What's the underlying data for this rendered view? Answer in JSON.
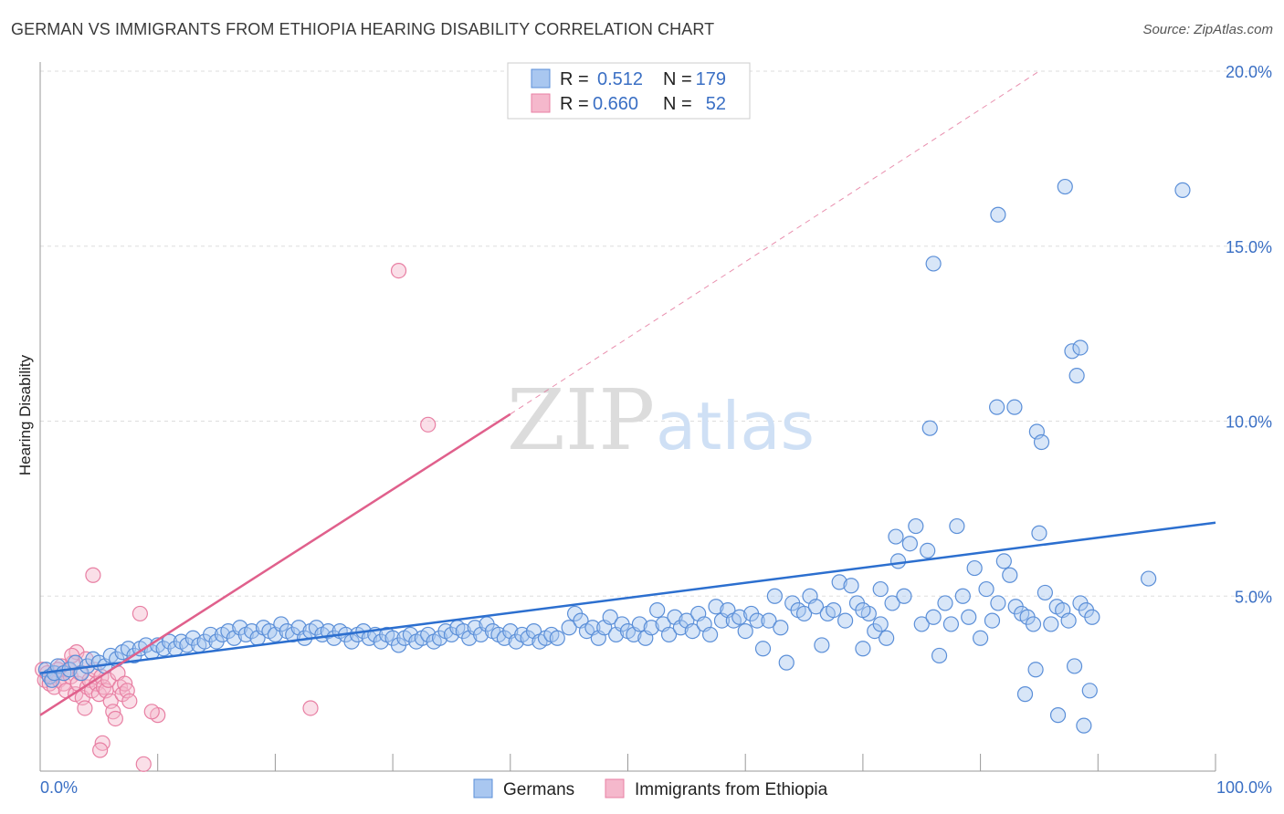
{
  "header": {
    "title": "GERMAN VS IMMIGRANTS FROM ETHIOPIA HEARING DISABILITY CORRELATION CHART",
    "source": "Source: ZipAtlas.com"
  },
  "colors": {
    "blue": "#5b8fd8",
    "blue_fill": "#a9c7f0",
    "blue_line": "#2c6fcf",
    "pink": "#e87fa3",
    "pink_fill": "#f5b8cc",
    "pink_line": "#e0608c",
    "axis_text": "#3a6fc4",
    "grid": "#dddddd"
  },
  "watermark": {
    "zip": "ZIP",
    "atlas": "atlas"
  },
  "legend": {
    "items": [
      {
        "r_label": "R =",
        "r_value": "0.512",
        "n_label": "N =",
        "n_value": "179"
      },
      {
        "r_label": "R =",
        "r_value": "0.660",
        "n_label": "N =",
        "n_value": "52"
      }
    ]
  },
  "bottom_legend": [
    "Germans",
    "Immigrants from Ethiopia"
  ],
  "chart_data": {
    "type": "scatter",
    "ylabel": "Hearing Disability",
    "xlim": [
      0,
      100
    ],
    "ylim": [
      0,
      20
    ],
    "x_tick_labels": [
      "0.0%",
      "100.0%"
    ],
    "y_ticks": [
      5,
      10,
      15,
      20
    ],
    "y_tick_labels": [
      "5.0%",
      "10.0%",
      "15.0%",
      "20.0%"
    ],
    "grid": true,
    "legend_position": "top-center",
    "series": [
      {
        "name": "Germans",
        "r": 0.512,
        "n": 179,
        "trend": {
          "x": [
            0,
            100
          ],
          "y": [
            2.8,
            7.1
          ]
        },
        "points": [
          [
            0.5,
            2.9
          ],
          [
            0.8,
            2.7
          ],
          [
            1,
            2.6
          ],
          [
            1.2,
            2.8
          ],
          [
            1.5,
            3.0
          ],
          [
            2,
            2.8
          ],
          [
            2.5,
            2.9
          ],
          [
            3,
            3.1
          ],
          [
            3.5,
            2.8
          ],
          [
            4,
            3.0
          ],
          [
            4.5,
            3.2
          ],
          [
            5,
            3.1
          ],
          [
            5.5,
            3.0
          ],
          [
            6,
            3.3
          ],
          [
            6.5,
            3.2
          ],
          [
            7,
            3.4
          ],
          [
            7.5,
            3.5
          ],
          [
            8,
            3.3
          ],
          [
            8.5,
            3.5
          ],
          [
            9,
            3.6
          ],
          [
            9.5,
            3.4
          ],
          [
            10,
            3.6
          ],
          [
            10.5,
            3.5
          ],
          [
            11,
            3.7
          ],
          [
            11.5,
            3.5
          ],
          [
            12,
            3.7
          ],
          [
            12.5,
            3.6
          ],
          [
            13,
            3.8
          ],
          [
            13.5,
            3.6
          ],
          [
            14,
            3.7
          ],
          [
            14.5,
            3.9
          ],
          [
            15,
            3.7
          ],
          [
            15.5,
            3.9
          ],
          [
            16,
            4.0
          ],
          [
            16.5,
            3.8
          ],
          [
            17,
            4.1
          ],
          [
            17.5,
            3.9
          ],
          [
            18,
            4.0
          ],
          [
            18.5,
            3.8
          ],
          [
            19,
            4.1
          ],
          [
            19.5,
            4.0
          ],
          [
            20,
            3.9
          ],
          [
            20.5,
            4.2
          ],
          [
            21,
            4.0
          ],
          [
            21.5,
            3.9
          ],
          [
            22,
            4.1
          ],
          [
            22.5,
            3.8
          ],
          [
            23,
            4.0
          ],
          [
            23.5,
            4.1
          ],
          [
            24,
            3.9
          ],
          [
            24.5,
            4.0
          ],
          [
            25,
            3.8
          ],
          [
            25.5,
            4.0
          ],
          [
            26,
            3.9
          ],
          [
            26.5,
            3.7
          ],
          [
            27,
            3.9
          ],
          [
            27.5,
            4.0
          ],
          [
            28,
            3.8
          ],
          [
            28.5,
            3.9
          ],
          [
            29,
            3.7
          ],
          [
            29.5,
            3.9
          ],
          [
            30,
            3.8
          ],
          [
            30.5,
            3.6
          ],
          [
            31,
            3.8
          ],
          [
            31.5,
            3.9
          ],
          [
            32,
            3.7
          ],
          [
            32.5,
            3.8
          ],
          [
            33,
            3.9
          ],
          [
            33.5,
            3.7
          ],
          [
            34,
            3.8
          ],
          [
            34.5,
            4.0
          ],
          [
            35,
            3.9
          ],
          [
            35.5,
            4.1
          ],
          [
            36,
            4.0
          ],
          [
            36.5,
            3.8
          ],
          [
            37,
            4.1
          ],
          [
            37.5,
            3.9
          ],
          [
            38,
            4.2
          ],
          [
            38.5,
            4.0
          ],
          [
            39,
            3.9
          ],
          [
            39.5,
            3.8
          ],
          [
            40,
            4.0
          ],
          [
            40.5,
            3.7
          ],
          [
            41,
            3.9
          ],
          [
            41.5,
            3.8
          ],
          [
            42,
            4.0
          ],
          [
            42.5,
            3.7
          ],
          [
            43,
            3.8
          ],
          [
            43.5,
            3.9
          ],
          [
            44,
            3.8
          ],
          [
            45,
            4.1
          ],
          [
            45.5,
            4.5
          ],
          [
            46,
            4.3
          ],
          [
            46.5,
            4.0
          ],
          [
            47,
            4.1
          ],
          [
            47.5,
            3.8
          ],
          [
            48,
            4.1
          ],
          [
            48.5,
            4.4
          ],
          [
            49,
            3.9
          ],
          [
            49.5,
            4.2
          ],
          [
            50,
            4.0
          ],
          [
            50.5,
            3.9
          ],
          [
            51,
            4.2
          ],
          [
            51.5,
            3.8
          ],
          [
            52,
            4.1
          ],
          [
            52.5,
            4.6
          ],
          [
            53,
            4.2
          ],
          [
            53.5,
            3.9
          ],
          [
            54,
            4.4
          ],
          [
            54.5,
            4.1
          ],
          [
            55,
            4.3
          ],
          [
            55.5,
            4.0
          ],
          [
            56,
            4.5
          ],
          [
            56.5,
            4.2
          ],
          [
            57,
            3.9
          ],
          [
            57.5,
            4.7
          ],
          [
            58,
            4.3
          ],
          [
            58.5,
            4.6
          ],
          [
            59,
            4.3
          ],
          [
            59.5,
            4.4
          ],
          [
            60,
            4.0
          ],
          [
            60.5,
            4.5
          ],
          [
            61,
            4.3
          ],
          [
            61.5,
            3.5
          ],
          [
            62,
            4.3
          ],
          [
            62.5,
            5.0
          ],
          [
            63,
            4.1
          ],
          [
            63.5,
            3.1
          ],
          [
            64,
            4.8
          ],
          [
            64.5,
            4.6
          ],
          [
            65,
            4.5
          ],
          [
            65.5,
            5.0
          ],
          [
            66,
            4.7
          ],
          [
            66.5,
            3.6
          ],
          [
            67,
            4.5
          ],
          [
            67.5,
            4.6
          ],
          [
            68,
            5.4
          ],
          [
            68.5,
            4.3
          ],
          [
            69,
            5.3
          ],
          [
            69.5,
            4.8
          ],
          [
            70,
            3.5
          ],
          [
            70.5,
            4.5
          ],
          [
            71,
            4.0
          ],
          [
            71.5,
            4.2
          ],
          [
            72,
            3.8
          ],
          [
            72.5,
            4.8
          ],
          [
            73,
            6.0
          ],
          [
            73.5,
            5.0
          ],
          [
            74,
            6.5
          ],
          [
            74.5,
            7.0
          ],
          [
            75,
            4.2
          ],
          [
            75.5,
            6.3
          ],
          [
            76,
            4.4
          ],
          [
            76.5,
            3.3
          ],
          [
            77,
            4.8
          ],
          [
            77.5,
            4.2
          ],
          [
            78,
            7.0
          ],
          [
            78.5,
            5.0
          ],
          [
            79,
            4.4
          ],
          [
            79.5,
            5.8
          ],
          [
            80,
            3.8
          ],
          [
            80.5,
            5.2
          ],
          [
            81,
            4.3
          ],
          [
            81.5,
            4.8
          ],
          [
            82,
            6.0
          ],
          [
            82.5,
            5.6
          ],
          [
            83,
            4.7
          ],
          [
            83.5,
            4.5
          ],
          [
            84,
            4.4
          ],
          [
            84.5,
            4.2
          ],
          [
            85,
            6.8
          ],
          [
            85.5,
            5.1
          ],
          [
            86,
            4.2
          ],
          [
            86.5,
            4.7
          ],
          [
            87,
            4.6
          ],
          [
            87.5,
            4.3
          ],
          [
            88,
            3.0
          ],
          [
            88.5,
            4.8
          ],
          [
            89,
            4.6
          ],
          [
            89.5,
            4.4
          ],
          [
            76,
            14.5
          ],
          [
            81.5,
            15.9
          ],
          [
            87.2,
            16.7
          ],
          [
            97.2,
            16.6
          ],
          [
            87.8,
            12.0
          ],
          [
            88.5,
            12.1
          ],
          [
            88.2,
            11.3
          ],
          [
            75.7,
            9.8
          ],
          [
            81.4,
            10.4
          ],
          [
            82.9,
            10.4
          ],
          [
            84.8,
            9.7
          ],
          [
            85.2,
            9.4
          ],
          [
            70,
            4.6
          ],
          [
            71.5,
            5.2
          ],
          [
            72.8,
            6.7
          ],
          [
            89.3,
            2.3
          ],
          [
            88.8,
            1.3
          ],
          [
            84.7,
            2.9
          ],
          [
            83.8,
            2.2
          ],
          [
            86.6,
            1.6
          ],
          [
            94.3,
            5.5
          ]
        ]
      },
      {
        "name": "Immigrants from Ethiopia",
        "r": 0.66,
        "n": 52,
        "trend": {
          "x": [
            0,
            40
          ],
          "y": [
            1.6,
            10.2
          ]
        },
        "trend_extension": {
          "x": [
            40,
            85
          ],
          "y": [
            10.2,
            20.0
          ]
        },
        "points": [
          [
            0.2,
            2.9
          ],
          [
            0.4,
            2.6
          ],
          [
            0.6,
            2.8
          ],
          [
            0.8,
            2.5
          ],
          [
            1,
            2.7
          ],
          [
            1.2,
            2.4
          ],
          [
            1.4,
            2.8
          ],
          [
            1.6,
            2.6
          ],
          [
            1.8,
            3.0
          ],
          [
            2,
            2.5
          ],
          [
            2.2,
            2.3
          ],
          [
            2.4,
            2.9
          ],
          [
            2.6,
            2.7
          ],
          [
            2.8,
            3.1
          ],
          [
            3,
            2.2
          ],
          [
            3.2,
            2.5
          ],
          [
            3.4,
            2.8
          ],
          [
            3.6,
            2.1
          ],
          [
            3.8,
            1.8
          ],
          [
            4,
            2.4
          ],
          [
            4.2,
            2.6
          ],
          [
            4.4,
            2.3
          ],
          [
            4.6,
            2.9
          ],
          [
            4.8,
            2.5
          ],
          [
            5,
            2.2
          ],
          [
            5.2,
            2.7
          ],
          [
            5.4,
            2.4
          ],
          [
            5.6,
            2.3
          ],
          [
            5.8,
            2.6
          ],
          [
            6,
            2.0
          ],
          [
            6.2,
            1.7
          ],
          [
            6.4,
            1.5
          ],
          [
            6.6,
            2.8
          ],
          [
            6.8,
            2.4
          ],
          [
            7,
            2.2
          ],
          [
            7.2,
            2.5
          ],
          [
            7.4,
            2.3
          ],
          [
            7.6,
            2.0
          ],
          [
            4.5,
            5.6
          ],
          [
            8.5,
            4.5
          ],
          [
            5.3,
            0.8
          ],
          [
            5.1,
            0.6
          ],
          [
            8.8,
            0.2
          ],
          [
            10,
            1.6
          ],
          [
            9.5,
            1.7
          ],
          [
            23,
            1.8
          ],
          [
            30.5,
            14.3
          ],
          [
            33,
            9.9
          ],
          [
            3.1,
            3.4
          ],
          [
            3.9,
            3.2
          ],
          [
            2.7,
            3.3
          ],
          [
            1.5,
            2.9
          ]
        ]
      }
    ]
  }
}
